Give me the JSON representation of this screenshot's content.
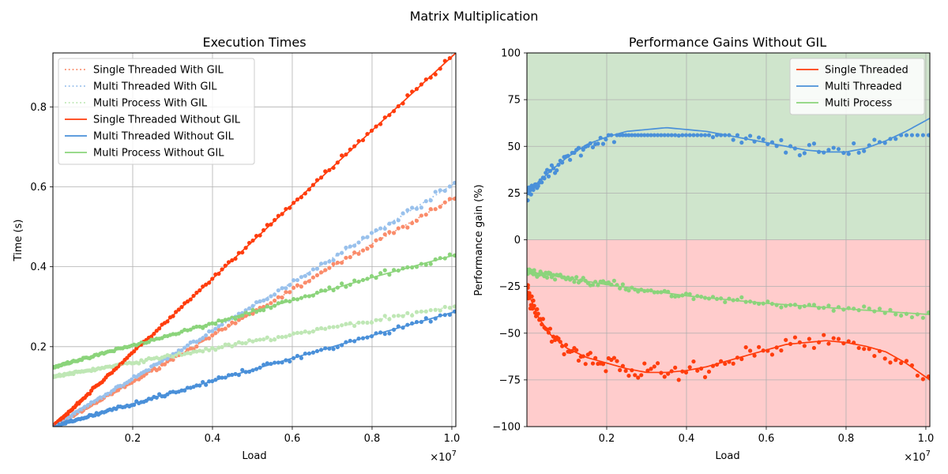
{
  "figure": {
    "suptitle": "Matrix Multiplication"
  },
  "chart_data": [
    {
      "type": "line",
      "title": "Execution Times",
      "xlabel": "Load",
      "ylabel": "Time (s)",
      "x_multiplier": "×10^7",
      "xlim": [
        0,
        10100000
      ],
      "ylim": [
        0,
        0.935
      ],
      "xticks": [
        2000000,
        4000000,
        6000000,
        8000000,
        10000000
      ],
      "xtick_labels": [
        "0.2",
        "0.4",
        "0.6",
        "0.8",
        "1.0"
      ],
      "yticks": [
        0.2,
        0.4,
        0.6,
        0.8
      ],
      "ytick_labels": [
        "0.2",
        "0.4",
        "0.6",
        "0.8"
      ],
      "grid": true,
      "legend": "upper-left",
      "series": [
        {
          "name": "Single Threaded With GIL",
          "style": "dotted",
          "color": "#fa8c6b",
          "x": [
            0,
            2000000,
            4000000,
            6000000,
            8000000,
            10100000
          ],
          "values": [
            0.0,
            0.112,
            0.227,
            0.342,
            0.457,
            0.575
          ]
        },
        {
          "name": "Multi Threaded With GIL",
          "style": "dotted",
          "color": "#99c1ec",
          "x": [
            0,
            2000000,
            4000000,
            6000000,
            8000000,
            10100000
          ],
          "values": [
            0.0,
            0.12,
            0.24,
            0.361,
            0.482,
            0.61
          ]
        },
        {
          "name": "Multi Process With GIL",
          "style": "dotted",
          "color": "#bfe7b5",
          "x": [
            0,
            2000000,
            4000000,
            6000000,
            8000000,
            10100000
          ],
          "values": [
            0.125,
            0.16,
            0.195,
            0.23,
            0.265,
            0.302
          ]
        },
        {
          "name": "Single Threaded Without GIL",
          "style": "solid",
          "color": "#ff3d0d",
          "x": [
            0,
            2000000,
            4000000,
            6000000,
            8000000,
            10100000
          ],
          "values": [
            0.0,
            0.185,
            0.37,
            0.556,
            0.741,
            0.935
          ]
        },
        {
          "name": "Multi Threaded Without GIL",
          "style": "solid",
          "color": "#4a90d9",
          "x": [
            0,
            2000000,
            4000000,
            6000000,
            8000000,
            10100000
          ],
          "values": [
            0.0,
            0.057,
            0.114,
            0.171,
            0.228,
            0.288
          ]
        },
        {
          "name": "Multi Process Without GIL",
          "style": "solid",
          "color": "#8bd47b",
          "x": [
            0,
            2000000,
            4000000,
            6000000,
            8000000,
            10100000
          ],
          "values": [
            0.148,
            0.203,
            0.259,
            0.316,
            0.373,
            0.43
          ]
        }
      ]
    },
    {
      "type": "line",
      "title": "Performance Gains Without GIL",
      "xlabel": "Load",
      "ylabel": "Performance gain (%)",
      "x_multiplier": "×10^7",
      "xlim": [
        0,
        10100000
      ],
      "ylim": [
        -100,
        100
      ],
      "xticks": [
        2000000,
        4000000,
        6000000,
        8000000,
        10000000
      ],
      "xtick_labels": [
        "0.2",
        "0.4",
        "0.6",
        "0.8",
        "1.0"
      ],
      "yticks": [
        -100,
        -75,
        -50,
        -25,
        0,
        25,
        50,
        75,
        100
      ],
      "ytick_labels": [
        "−100",
        "−75",
        "−50",
        "−25",
        "0",
        "25",
        "50",
        "75",
        "100"
      ],
      "grid": true,
      "legend": "upper-right",
      "background_regions": [
        {
          "from": 0,
          "to": 100,
          "color": "#cfe5cc"
        },
        {
          "from": -100,
          "to": 0,
          "color": "#ffcccc"
        }
      ],
      "series": [
        {
          "name": "Single Threaded",
          "style": "solid",
          "color": "#ff3d0d",
          "x": [
            0,
            300000,
            600000,
            1000000,
            1500000,
            2000000,
            2500000,
            3000000,
            3500000,
            4000000,
            4500000,
            5000000,
            5500000,
            6000000,
            6500000,
            7000000,
            7500000,
            8000000,
            8500000,
            9000000,
            9500000,
            10100000
          ],
          "values": [
            -27,
            -42,
            -51,
            -58,
            -63,
            -66,
            -69,
            -71,
            -71,
            -70,
            -68,
            -65,
            -62,
            -59,
            -56,
            -55,
            -54,
            -55,
            -57,
            -60,
            -66,
            -75
          ]
        },
        {
          "name": "Multi Threaded",
          "style": "solid",
          "color": "#4a90d9",
          "x": [
            0,
            300000,
            600000,
            1000000,
            1500000,
            2000000,
            2500000,
            3000000,
            3500000,
            4000000,
            4500000,
            5000000,
            5500000,
            6000000,
            6500000,
            7000000,
            7500000,
            8000000,
            8500000,
            9000000,
            9500000,
            10100000
          ],
          "values": [
            24,
            31,
            37,
            44,
            51,
            55,
            58,
            59,
            60,
            59,
            58,
            56,
            54,
            52,
            50,
            48,
            47,
            47,
            49,
            53,
            58,
            65
          ]
        },
        {
          "name": "Multi Process",
          "style": "solid",
          "color": "#8bd47b",
          "x": [
            0,
            2000000,
            4000000,
            6000000,
            8000000,
            10100000
          ],
          "values": [
            -17,
            -24,
            -30,
            -34,
            -37,
            -40
          ]
        }
      ]
    }
  ]
}
